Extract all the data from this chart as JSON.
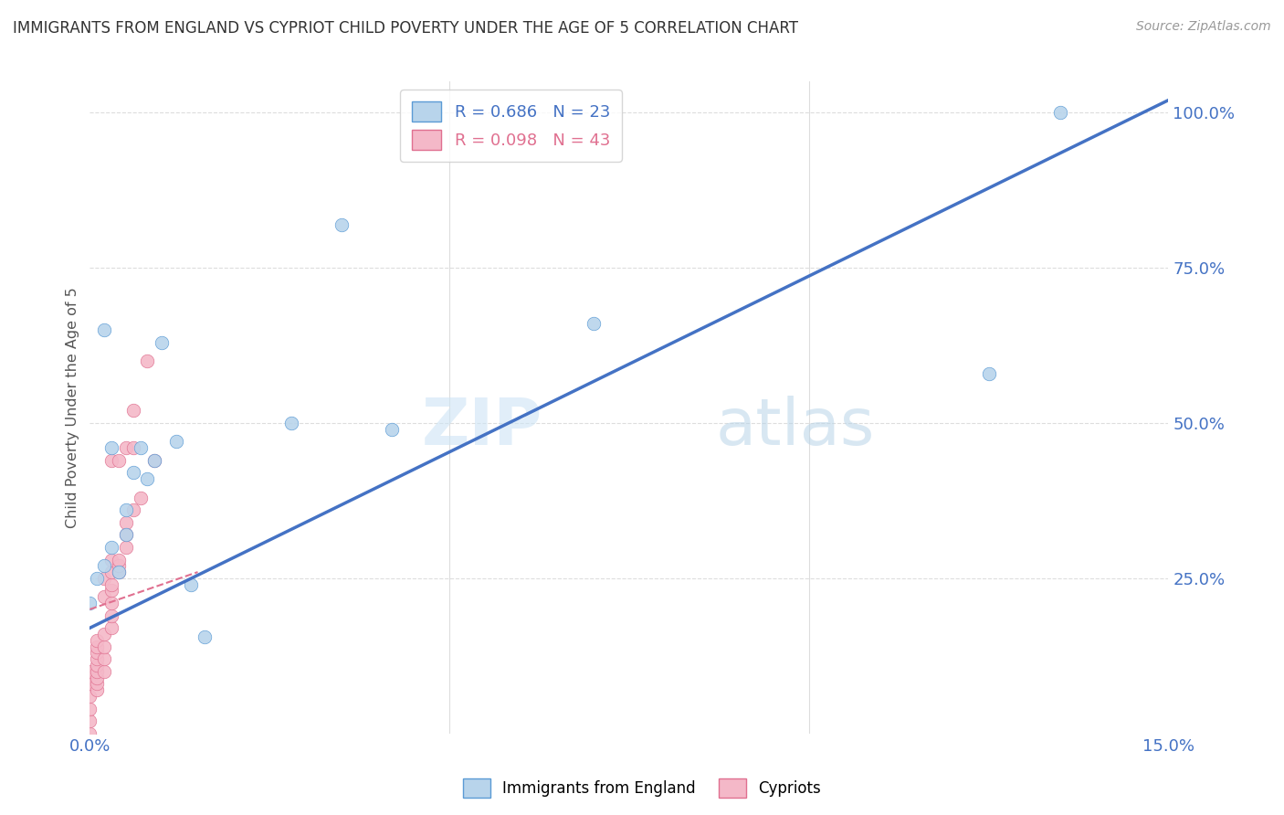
{
  "title": "IMMIGRANTS FROM ENGLAND VS CYPRIOT CHILD POVERTY UNDER THE AGE OF 5 CORRELATION CHART",
  "source": "Source: ZipAtlas.com",
  "ylabel": "Child Poverty Under the Age of 5",
  "xlim": [
    0,
    0.15
  ],
  "ylim": [
    0,
    1.05
  ],
  "ytick_labels": [
    "100.0%",
    "75.0%",
    "50.0%",
    "25.0%"
  ],
  "ytick_positions": [
    1.0,
    0.75,
    0.5,
    0.25
  ],
  "england_color": "#b8d4eb",
  "england_edge_color": "#5b9bd5",
  "cypriot_color": "#f4b8c8",
  "cypriot_edge_color": "#e07090",
  "england_r": "0.686",
  "england_n": "23",
  "cypriot_r": "0.098",
  "cypriot_n": "43",
  "england_line_color": "#4472c4",
  "cypriot_line_color": "#e07090",
  "watermark_zip": "ZIP",
  "watermark_atlas": "atlas",
  "england_points_x": [
    0.0,
    0.001,
    0.002,
    0.003,
    0.003,
    0.004,
    0.005,
    0.005,
    0.006,
    0.007,
    0.008,
    0.009,
    0.01,
    0.012,
    0.014,
    0.016,
    0.028,
    0.035,
    0.042,
    0.07,
    0.125,
    0.135,
    0.002
  ],
  "england_points_y": [
    0.21,
    0.25,
    0.27,
    0.3,
    0.46,
    0.26,
    0.36,
    0.32,
    0.42,
    0.46,
    0.41,
    0.44,
    0.63,
    0.47,
    0.24,
    0.155,
    0.5,
    0.82,
    0.49,
    0.66,
    0.58,
    1.0,
    0.65
  ],
  "cypriot_points_x": [
    0.0,
    0.0,
    0.0,
    0.0,
    0.0,
    0.0,
    0.001,
    0.001,
    0.001,
    0.001,
    0.001,
    0.001,
    0.001,
    0.001,
    0.001,
    0.002,
    0.002,
    0.002,
    0.002,
    0.002,
    0.002,
    0.003,
    0.003,
    0.003,
    0.003,
    0.003,
    0.003,
    0.003,
    0.003,
    0.004,
    0.004,
    0.004,
    0.004,
    0.005,
    0.005,
    0.005,
    0.005,
    0.006,
    0.006,
    0.006,
    0.007,
    0.008,
    0.009
  ],
  "cypriot_points_y": [
    0.0,
    0.02,
    0.04,
    0.06,
    0.08,
    0.1,
    0.07,
    0.08,
    0.09,
    0.1,
    0.11,
    0.12,
    0.13,
    0.14,
    0.15,
    0.1,
    0.12,
    0.14,
    0.16,
    0.22,
    0.25,
    0.17,
    0.19,
    0.21,
    0.23,
    0.24,
    0.26,
    0.28,
    0.44,
    0.26,
    0.27,
    0.28,
    0.44,
    0.3,
    0.32,
    0.34,
    0.46,
    0.36,
    0.46,
    0.52,
    0.38,
    0.6,
    0.44
  ],
  "england_trend_x": [
    0.0,
    0.15
  ],
  "england_trend_y": [
    0.17,
    1.02
  ],
  "cypriot_trend_x": [
    0.0,
    0.015
  ],
  "cypriot_trend_y": [
    0.2,
    0.26
  ],
  "marker_size": 110,
  "grid_color": "#dddddd",
  "title_color": "#333333",
  "axis_color": "#4472c4",
  "legend_color_england": "#b8d4eb",
  "legend_color_cypriot": "#f4b8c8",
  "legend_edge_england": "#5b9bd5",
  "legend_edge_cypriot": "#e07090"
}
